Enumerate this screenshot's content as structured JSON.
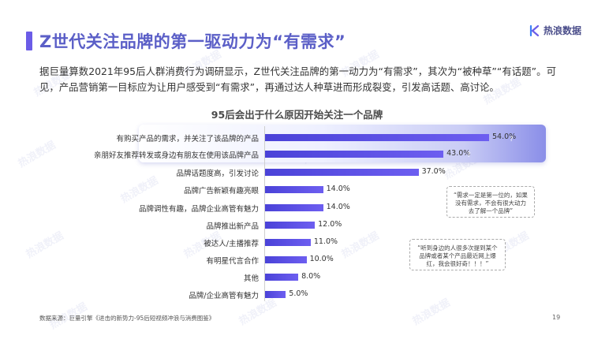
{
  "title": "Z世代关注品牌的第一驱动力为“有需求”",
  "brand": {
    "name": "热浪数据"
  },
  "body_text": "据巨量算数2021年95后人群消费行为调研显示，Z世代关注品牌的第一动力为“有需求”，其次为“被种草”“有话题”。可见，产品营销第一目标应为让用户感受到“有需求”，再通过达人种草进而形成裂变，引发高话题、高讨论。",
  "chart_data": {
    "type": "bar",
    "orientation": "horizontal",
    "title": "95后会出于什么原因开始关注一个品牌",
    "categories": [
      "有购买产品的需求，并关注了该品牌的产品",
      "亲朋好友推荐转发或身边有朋友在使用该品牌产品",
      "品牌话题度高，引发讨论",
      "品牌广告新颖有趣亮眼",
      "品牌调性有趣，品牌企业高管有魅力",
      "品牌推出新产品",
      "被达人/主播推荐",
      "有明星代言合作",
      "其他",
      "品牌/企业高管有魅力"
    ],
    "values": [
      54.0,
      43.0,
      37.0,
      14.0,
      14.0,
      12.0,
      11.0,
      10.0,
      8.0,
      5.0
    ],
    "value_labels": [
      "54.0%",
      "43.0%",
      "37.0%",
      "14.0%",
      "14.0%",
      "12.0%",
      "11.0%",
      "10.0%",
      "8.0%",
      "5.0%"
    ],
    "highlighted_categories": [
      0,
      1
    ],
    "bar_color": "#5a4fe0"
  },
  "callouts": [
    "“需求一定是第一位的，如果没有需求，不会有很大动力去了解一个品牌”",
    "“听到身边的人很多次提到某个品牌或者某个产品最近网上爆红，我会很好奇！！！”"
  ],
  "marks": {
    "q1": "?",
    "q2": "?"
  },
  "source": "数据来源：巨量引擎《进击的新势力-95后短视频冲浪与消费图鉴》",
  "page_number": "19",
  "watermark": "热浪数据",
  "colors": {
    "title": "#5b5fc7",
    "accent": "#6b5ce7",
    "bar": "#5a4fe0"
  }
}
